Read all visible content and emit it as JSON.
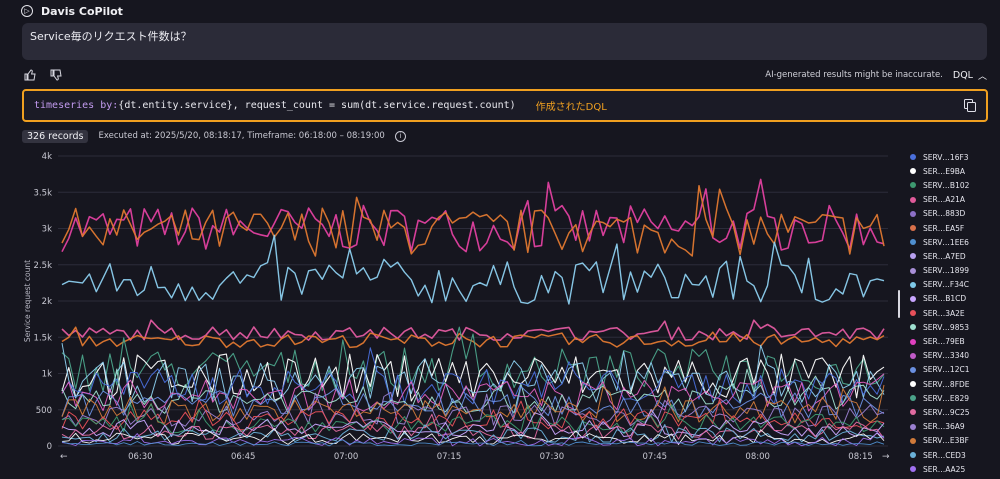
{
  "header": {
    "title": "Davis CoPilot",
    "logo_icon": "davis-logo-icon"
  },
  "prompt": {
    "text": "Service毎のリクエスト件数は？"
  },
  "feedback": {
    "disclaimer": "AI-generated results might be inaccurate.",
    "dql_toggle_label": "DQL"
  },
  "query": {
    "keyword": "timeseries by:",
    "rest": "{dt.entity.service}, request_count = sum(dt.service.request.count)",
    "note": "作成されたDQL"
  },
  "meta": {
    "records": "326 records",
    "executed": "Executed at: 2025/5/20, 08:18:17, Timeframe: 06:18:00 – 08:19:00"
  },
  "chart_data": {
    "type": "line",
    "ylabel": "Service request count",
    "y_ticks": [
      "0",
      "500",
      "1k",
      "1.5k",
      "2k",
      "2.5k",
      "3k",
      "3.5k",
      "4k"
    ],
    "ylim": [
      0,
      4000
    ],
    "x_ticks": [
      "06:30",
      "06:45",
      "07:00",
      "07:15",
      "07:30",
      "07:45",
      "08:00",
      "08:15"
    ],
    "x_range": [
      "06:18",
      "08:19"
    ],
    "grid": true,
    "legend_position": "right",
    "series_names": [
      "SERV…16F3",
      "SER…E9BA",
      "SERV…B102",
      "SER…A21A",
      "SER…883D",
      "SER…EA5F",
      "SERV…1EE6",
      "SER…A7ED",
      "SERV…1899",
      "SERV…F34C",
      "SER…B1CD",
      "SER…3A2E",
      "SERV…9853",
      "SER…79EB",
      "SERV…3340",
      "SERV…12C1",
      "SERV…8FDE",
      "SERV…E829",
      "SERV…9C25",
      "SER…36A9",
      "SERV…E3BF",
      "SER…CED3",
      "SER…AA25"
    ],
    "series_colors": [
      "#4a6fdc",
      "#ffffff",
      "#3d9970",
      "#e05a9a",
      "#8c6fc6",
      "#d9704a",
      "#4f8fd0",
      "#b8a0f0",
      "#a98fd8",
      "#7ec8e8",
      "#c8a6ff",
      "#e8505a",
      "#9fe0d0",
      "#e040c0",
      "#c05ac8",
      "#6a8fe0",
      "#ffffff",
      "#4ba38a",
      "#e06aa0",
      "#9a7fd0",
      "#d07a3a",
      "#6ab0d8",
      "#a070f0"
    ]
  }
}
